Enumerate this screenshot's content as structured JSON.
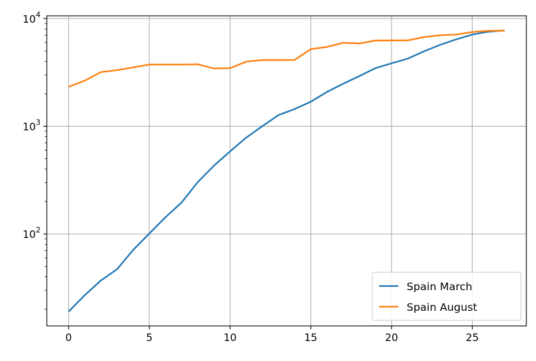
{
  "chart_data": {
    "type": "line",
    "title": "",
    "xlabel": "",
    "ylabel": "",
    "yscale": "log",
    "xlim": [
      -1.35,
      28.35
    ],
    "ylim": [
      14,
      10600
    ],
    "grid": true,
    "legend_position": "lower-right",
    "x_ticks": [
      0,
      5,
      10,
      15,
      20,
      25
    ],
    "x_tick_labels": [
      "0",
      "5",
      "10",
      "15",
      "20",
      "25"
    ],
    "y_ticks": [
      100,
      1000,
      10000
    ],
    "y_tick_bases": [
      "10",
      "10",
      "10"
    ],
    "y_tick_exponents": [
      "2",
      "3",
      "4"
    ],
    "x": [
      0,
      1,
      2,
      3,
      4,
      5,
      6,
      7,
      8,
      9,
      10,
      11,
      12,
      13,
      14,
      15,
      16,
      17,
      18,
      19,
      20,
      21,
      22,
      23,
      24,
      25,
      26,
      27
    ],
    "series": [
      {
        "name": "Spain March",
        "color": "#1f77b4",
        "values": [
          19,
          27,
          37,
          47,
          71,
          101,
          143,
          196,
          303,
          430,
          585,
          784,
          1002,
          1270,
          1445,
          1690,
          2080,
          2480,
          2920,
          3460,
          3840,
          4240,
          4960,
          5690,
          6400,
          7100,
          7540,
          7760
        ]
      },
      {
        "name": "Spain August",
        "color": "#ff7f0e",
        "values": [
          2320,
          2650,
          3180,
          3320,
          3520,
          3740,
          3740,
          3740,
          3760,
          3440,
          3460,
          3980,
          4120,
          4120,
          4130,
          5200,
          5450,
          5950,
          5870,
          6250,
          6260,
          6270,
          6720,
          7000,
          7100,
          7490,
          7690,
          7720
        ]
      }
    ]
  }
}
